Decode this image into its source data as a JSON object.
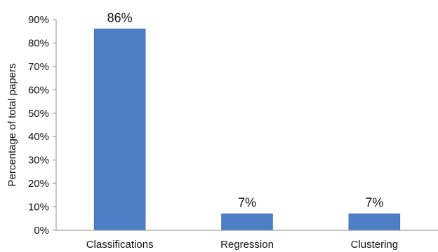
{
  "chart_data": {
    "type": "bar",
    "categories": [
      "Classifications",
      "Regression",
      "Clustering"
    ],
    "values": [
      86,
      7,
      7
    ],
    "data_labels": [
      "86%",
      "7%",
      "7%"
    ],
    "title": "",
    "xlabel": "",
    "ylabel": "Percentage of total papers",
    "ylim": [
      0,
      90
    ],
    "y_ticks": [
      0,
      10,
      20,
      30,
      40,
      50,
      60,
      70,
      80,
      90
    ],
    "y_tick_labels": [
      "0%",
      "10%",
      "20%",
      "30%",
      "40%",
      "50%",
      "60%",
      "70%",
      "80%",
      "90%"
    ],
    "grid": false,
    "legend": "none",
    "bar_color": "#4F7FC4",
    "bar_edge_color": "#3F6DB3"
  }
}
